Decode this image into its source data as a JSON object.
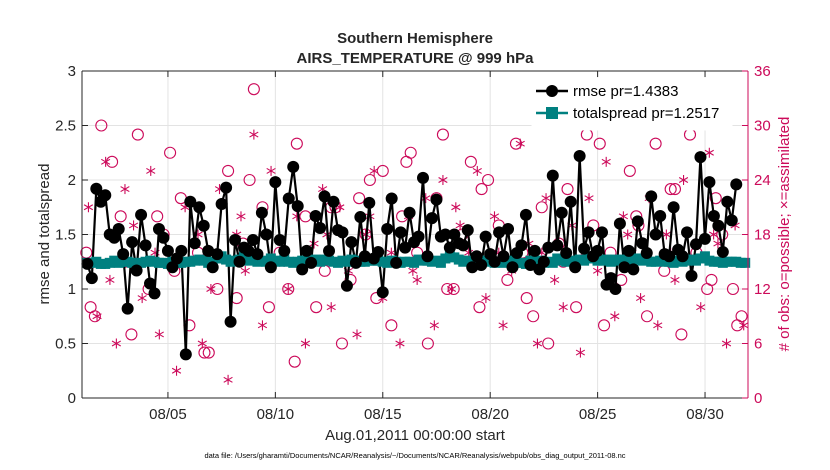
{
  "chart_data": {
    "type": "line",
    "title": "Southern Hemisphere",
    "subtitle": "AIRS_TEMPERATURE @ 999 hPa",
    "xlabel": "Aug.01,2011 00:00:00 start",
    "ylabel": "rmse and totalspread",
    "y2label": "# of obs: o=possible; ×=assimilated",
    "footnote": "data file: /Users/gharamti/Documents/NCAR/Reanalysis/~/Documents/NCAR/Reanalysis/webpub/obs_diag_output_2011-08.nc",
    "xlim": [
      1.0,
      32.0
    ],
    "ylim": [
      0,
      3
    ],
    "y2lim": [
      0,
      36
    ],
    "x_ticks": [
      5,
      10,
      15,
      20,
      25,
      30
    ],
    "x_tick_labels": [
      "08/05",
      "08/10",
      "08/15",
      "08/20",
      "08/25",
      "08/30"
    ],
    "y_ticks": [
      0,
      0.5,
      1,
      1.5,
      2,
      2.5,
      3
    ],
    "y_tick_labels": [
      "0",
      "0.5",
      "1",
      "1.5",
      "2",
      "2.5",
      "3"
    ],
    "y2_ticks": [
      0,
      6,
      12,
      18,
      24,
      30,
      36
    ],
    "y2_tick_labels": [
      "0",
      "6",
      "12",
      "18",
      "24",
      "30",
      "36"
    ],
    "grid": true,
    "legend_position": "top-right",
    "colors": {
      "rmse": "#000000",
      "spread": "#008080",
      "obs": "#cc0a5a",
      "axis": "#262626"
    },
    "series": [
      {
        "name": "rmse pr=1.4383",
        "axis": "left",
        "values": [
          1.23,
          1.1,
          1.92,
          1.8,
          1.86,
          1.5,
          1.47,
          1.55,
          1.32,
          0.82,
          1.43,
          1.17,
          1.68,
          1.4,
          1.05,
          0.96,
          1.55,
          1.47,
          1.35,
          1.2,
          1.28,
          1.35,
          0.4,
          1.8,
          1.42,
          1.75,
          1.58,
          1.35,
          1.2,
          1.32,
          1.78,
          1.93,
          0.7,
          1.45,
          1.25,
          1.38,
          1.35,
          1.45,
          1.32,
          1.7,
          1.5,
          1.2,
          1.98,
          1.45,
          1.35,
          1.83,
          2.12,
          1.76,
          1.18,
          1.35,
          1.24,
          1.67,
          1.56,
          1.85,
          1.35,
          1.8,
          1.54,
          1.52,
          1.03,
          1.43,
          1.24,
          1.66,
          1.3,
          1.79,
          1.28,
          1.34,
          0.97,
          1.55,
          1.83,
          1.24,
          1.52,
          1.38,
          1.7,
          1.43,
          1.48,
          2.02,
          1.3,
          1.65,
          1.82,
          1.48,
          1.5,
          1.38,
          1.5,
          1.42,
          1.4,
          1.54,
          1.2,
          1.3,
          1.22,
          1.48,
          1.32,
          1.25,
          1.52,
          1.3,
          1.55,
          1.2,
          1.33,
          1.4,
          1.68,
          1.22,
          1.35,
          1.18,
          1.25,
          1.38,
          2.04,
          1.4,
          1.7,
          1.33,
          1.8,
          1.2,
          2.22,
          1.37,
          1.52,
          1.3,
          1.35,
          1.52,
          1.04,
          1.1,
          1.0,
          1.6,
          1.2,
          1.35,
          1.18,
          1.62,
          1.42,
          1.33,
          1.85,
          1.5,
          1.67,
          1.32,
          1.3,
          1.75,
          1.36,
          1.3,
          1.52,
          1.12,
          1.41,
          2.21,
          1.46,
          1.98,
          1.67,
          1.58,
          1.34,
          1.8,
          1.63,
          1.96
        ]
      },
      {
        "name": "totalspread pr=1.2517",
        "axis": "left",
        "values": [
          1.24,
          1.24,
          1.25,
          1.23,
          1.23,
          1.24,
          1.26,
          1.24,
          1.25,
          1.25,
          1.24,
          1.23,
          1.24,
          1.25,
          1.26,
          1.25,
          1.24,
          1.24,
          1.23,
          1.25,
          1.24,
          1.24,
          1.25,
          1.25,
          1.26,
          1.27,
          1.26,
          1.24,
          1.25,
          1.28,
          1.3,
          1.27,
          1.25,
          1.26,
          1.27,
          1.3,
          1.26,
          1.27,
          1.25,
          1.26,
          1.25,
          1.28,
          1.26,
          1.25,
          1.27,
          1.25,
          1.24,
          1.25,
          1.26,
          1.26,
          1.25,
          1.27,
          1.25,
          1.27,
          1.26,
          1.25,
          1.24,
          1.26,
          1.25,
          1.27,
          1.26,
          1.25,
          1.25,
          1.26,
          1.26,
          1.26,
          1.25,
          1.24,
          1.26,
          1.25,
          1.24,
          1.25,
          1.25,
          1.24,
          1.27,
          1.26,
          1.26,
          1.25,
          1.26,
          1.24,
          1.28,
          1.3,
          1.29,
          1.27,
          1.25,
          1.26,
          1.25,
          1.26,
          1.24,
          1.26,
          1.25,
          1.24,
          1.25,
          1.24,
          1.26,
          1.25,
          1.24,
          1.24,
          1.23,
          1.26,
          1.25,
          1.26,
          1.24,
          1.25,
          1.24,
          1.28,
          1.26,
          1.25,
          1.26,
          1.25,
          1.27,
          1.26,
          1.3,
          1.28,
          1.26,
          1.26,
          1.27,
          1.25,
          1.27,
          1.26,
          1.27,
          1.25,
          1.27,
          1.28,
          1.26,
          1.27,
          1.25,
          1.25,
          1.26,
          1.25,
          1.25,
          1.24,
          1.26,
          1.25,
          1.26,
          1.27,
          1.26,
          1.28,
          1.3,
          1.26,
          1.25,
          1.25,
          1.24,
          1.25,
          1.25,
          1.25,
          1.24,
          1.24
        ]
      },
      {
        "name": "possible",
        "axis": "right",
        "x": [
          1.2,
          1.6,
          1.9,
          2.4,
          2.8,
          3.3,
          3.6,
          4.1,
          4.5,
          4.8,
          5.3,
          5.6,
          6.0,
          6.4,
          6.9,
          7.3,
          7.8,
          8.2,
          8.5,
          9.0,
          9.4,
          9.7,
          10.2,
          10.6,
          11.0,
          11.4,
          11.9,
          12.3,
          12.6,
          13.1,
          13.5,
          13.9,
          14.2,
          14.7,
          15.0,
          15.4,
          15.9,
          16.3,
          16.6,
          17.1,
          17.5,
          17.8,
          18.3,
          18.7,
          19.1,
          19.5,
          19.9,
          20.4,
          20.8,
          21.2,
          21.5,
          22.0,
          22.4,
          22.7,
          23.2,
          23.6,
          24.0,
          24.5,
          24.8,
          25.3,
          25.6,
          26.1,
          26.5,
          26.8,
          27.3,
          27.7,
          28.1,
          28.4,
          28.9,
          29.3,
          29.6,
          30.1,
          30.5,
          30.8,
          31.3,
          31.7,
          1.4,
          3.0,
          5.1,
          6.7,
          8.8,
          10.9,
          12.8,
          14.4,
          16.1,
          18.0,
          19.6,
          21.7,
          23.4,
          25.1,
          26.9,
          28.6,
          30.3,
          31.5
        ],
        "y": [
          16,
          9,
          30,
          26,
          20,
          7,
          29,
          12,
          20,
          18,
          14,
          22,
          8,
          16,
          5,
          12,
          25,
          11,
          17,
          34,
          21,
          10,
          16,
          12,
          28,
          20,
          10,
          14,
          21,
          6,
          13,
          22,
          18,
          11,
          25,
          8,
          20,
          27,
          16,
          6,
          22,
          29,
          12,
          18,
          26,
          10,
          24,
          19,
          13,
          28,
          16,
          9,
          21,
          6,
          17,
          23,
          10,
          29,
          19,
          8,
          16,
          13,
          25,
          20,
          9,
          28,
          14,
          23,
          7,
          29,
          16,
          12,
          22,
          18,
          12,
          9,
          10,
          15,
          27,
          5,
          24,
          4,
          21,
          24,
          26,
          12,
          23,
          11,
          15,
          28,
          19,
          23,
          13,
          8
        ]
      },
      {
        "name": "assimilated",
        "axis": "right",
        "x": [
          1.3,
          1.7,
          2.1,
          2.6,
          3.0,
          3.4,
          3.8,
          4.2,
          4.6,
          5.0,
          5.4,
          5.8,
          6.2,
          6.6,
          7.0,
          7.4,
          7.8,
          8.2,
          8.6,
          9.0,
          9.4,
          9.8,
          10.2,
          10.6,
          11.0,
          11.4,
          11.8,
          12.2,
          12.6,
          13.0,
          13.4,
          13.8,
          14.2,
          14.6,
          15.0,
          15.4,
          15.8,
          16.2,
          16.6,
          17.0,
          17.4,
          17.8,
          18.2,
          18.6,
          19.0,
          19.4,
          19.8,
          20.2,
          20.6,
          21.0,
          21.4,
          21.8,
          22.2,
          22.6,
          23.0,
          23.4,
          23.8,
          24.2,
          24.6,
          25.0,
          25.4,
          25.8,
          26.2,
          26.6,
          27.0,
          27.4,
          27.8,
          28.2,
          28.6,
          29.0,
          29.4,
          29.8,
          30.2,
          30.6,
          31.0,
          31.4,
          31.8,
          2.3,
          4.4,
          6.4,
          8.4,
          10.4,
          12.4,
          14.4,
          16.4,
          18.4,
          20.4,
          22.4,
          24.4,
          26.4,
          28.4,
          30.4
        ],
        "y": [
          21,
          9,
          26,
          6,
          23,
          19,
          11,
          25,
          7,
          16,
          3,
          21,
          17,
          6,
          12,
          23,
          2,
          18,
          14,
          29,
          8,
          25,
          15,
          12,
          20,
          6,
          17,
          23,
          10,
          21,
          14,
          7,
          18,
          25,
          11,
          16,
          6,
          20,
          13,
          22,
          8,
          24,
          12,
          19,
          16,
          25,
          11,
          20,
          8,
          14,
          28,
          17,
          6,
          22,
          13,
          10,
          19,
          5,
          22,
          14,
          26,
          9,
          20,
          16,
          11,
          22,
          8,
          18,
          13,
          24,
          15,
          10,
          27,
          17,
          6,
          19,
          8,
          13,
          16,
          18,
          20,
          15,
          18,
          20,
          14,
          21,
          16,
          16,
          16,
          18,
          16,
          18
        ]
      }
    ]
  }
}
